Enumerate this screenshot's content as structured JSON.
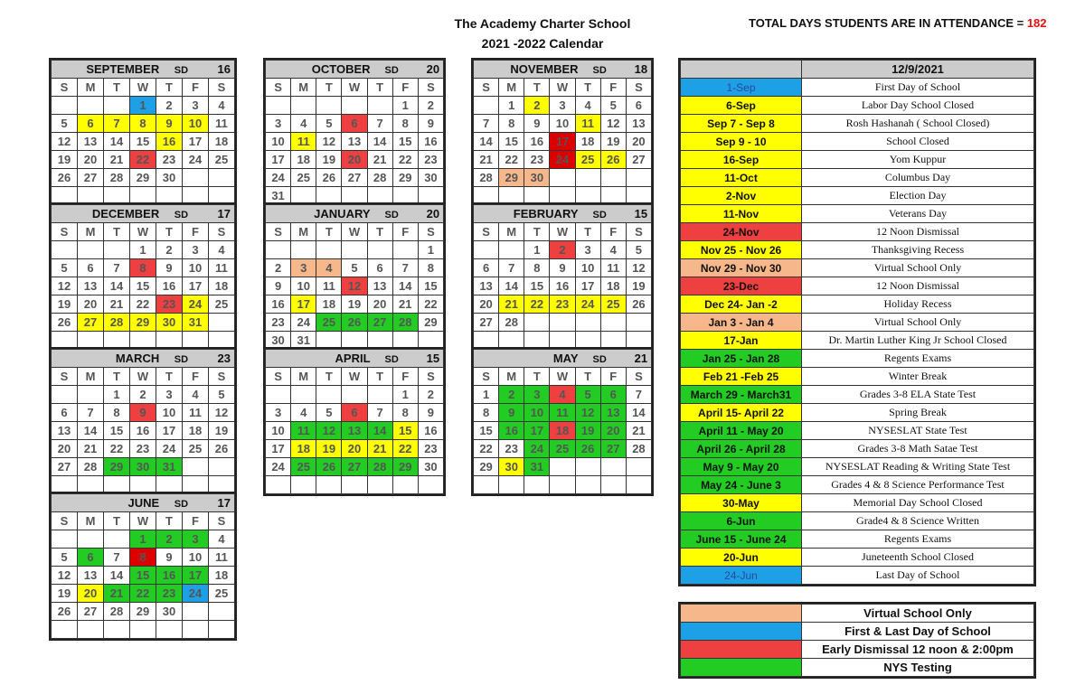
{
  "header": {
    "school": "The Academy Charter School",
    "year": "2021 -2022 Calendar",
    "total_label": "TOTAL DAYS STUDENTS ARE IN ATTENDANCE = ",
    "total_value": "182"
  },
  "dow": [
    "S",
    "M",
    "T",
    "W",
    "T",
    "F",
    "S"
  ],
  "sd_label": "SD",
  "colors": {
    "y": "#ffff00",
    "g": "#22cc22",
    "r": "#ee4040",
    "R": "#dd0000",
    "b": "#1ea0e6",
    "p": "#f6b88a"
  },
  "months": [
    {
      "name": "SEPTEMBER",
      "sd": "16",
      "start": 3,
      "days": 30,
      "marks": {
        "1": "b",
        "6": "y",
        "7": "y",
        "8": "y",
        "9": "y",
        "10": "y",
        "16": "y",
        "22": "r"
      }
    },
    {
      "name": "OCTOBER",
      "sd": "20",
      "start": 5,
      "days": 31,
      "marks": {
        "6": "r",
        "11": "y",
        "20": "r"
      }
    },
    {
      "name": "NOVEMBER",
      "sd": "18",
      "start": 1,
      "days": 30,
      "marks": {
        "2": "y",
        "11": "y",
        "17": "R",
        "24": "R",
        "25": "y",
        "26": "y",
        "29": "p",
        "30": "p"
      }
    },
    {
      "name": "DECEMBER",
      "sd": "17",
      "start": 3,
      "days": 31,
      "marks": {
        "8": "r",
        "23": "r",
        "24": "y",
        "27": "y",
        "28": "y",
        "29": "y",
        "30": "y",
        "31": "y"
      }
    },
    {
      "name": "JANUARY",
      "sd": "20",
      "start": 6,
      "days": 31,
      "marks": {
        "3": "p",
        "4": "p",
        "12": "r",
        "17": "y",
        "25": "g",
        "26": "g",
        "27": "g",
        "28": "g"
      }
    },
    {
      "name": "FEBRUARY",
      "sd": "15",
      "start": 2,
      "days": 28,
      "marks": {
        "2": "r",
        "21": "y",
        "22": "y",
        "23": "y",
        "24": "y",
        "25": "y"
      }
    },
    {
      "name": "MARCH",
      "sd": "23",
      "start": 2,
      "days": 31,
      "marks": {
        "9": "r",
        "29": "g",
        "30": "g",
        "31": "g"
      }
    },
    {
      "name": "APRIL",
      "sd": "15",
      "start": 5,
      "days": 30,
      "marks": {
        "6": "r",
        "11": "g",
        "12": "g",
        "13": "g",
        "14": "g",
        "15": "y",
        "18": "y",
        "19": "y",
        "20": "y",
        "21": "y",
        "22": "y",
        "25": "g",
        "26": "g",
        "27": "g",
        "28": "g",
        "29": "g"
      }
    },
    {
      "name": "MAY",
      "sd": "21",
      "start": 0,
      "days": 31,
      "marks": {
        "2": "g",
        "3": "g",
        "4": "r",
        "5": "g",
        "6": "g",
        "9": "g",
        "10": "g",
        "11": "g",
        "12": "g",
        "13": "g",
        "16": "g",
        "17": "g",
        "18": "r",
        "19": "g",
        "20": "g",
        "24": "g",
        "25": "g",
        "26": "g",
        "27": "g",
        "30": "y",
        "31": "g"
      }
    },
    {
      "name": "JUNE",
      "sd": "17",
      "start": 3,
      "days": 30,
      "marks": {
        "1": "g",
        "2": "g",
        "3": "g",
        "6": "g",
        "8": "R",
        "15": "g",
        "16": "g",
        "17": "g",
        "20": "y",
        "21": "g",
        "22": "g",
        "23": "g",
        "24": "b"
      }
    }
  ],
  "events": {
    "date": "12/9/2021",
    "rows": [
      {
        "d": "1-Sep",
        "e": "First Day of School",
        "c": "b"
      },
      {
        "d": "6-Sep",
        "e": "Labor Day School Closed",
        "c": "y"
      },
      {
        "d": "Sep 7 - Sep 8",
        "e": "Rosh Hashanah ( School Closed)",
        "c": "y"
      },
      {
        "d": "Sep 9 - 10",
        "e": "School Closed",
        "c": "y"
      },
      {
        "d": "16-Sep",
        "e": "Yom Kuppur",
        "c": "y"
      },
      {
        "d": "11-Oct",
        "e": "Columbus Day",
        "c": "y"
      },
      {
        "d": "2-Nov",
        "e": "Election Day",
        "c": "y"
      },
      {
        "d": "11-Nov",
        "e": "Veterans Day",
        "c": "y"
      },
      {
        "d": "24-Nov",
        "e": "12 Noon Dismissal",
        "c": "r"
      },
      {
        "d": "Nov 25 - Nov 26",
        "e": "Thanksgiving Recess",
        "c": "y"
      },
      {
        "d": "Nov 29 - Nov 30",
        "e": "Virtual School Only",
        "c": "p"
      },
      {
        "d": "23-Dec",
        "e": "12 Noon Dismissal",
        "c": "r"
      },
      {
        "d": "Dec 24- Jan -2",
        "e": "Holiday Recess",
        "c": "y"
      },
      {
        "d": "Jan 3 - Jan 4",
        "e": "Virtual School Only",
        "c": "p"
      },
      {
        "d": "17-Jan",
        "e": "Dr. Martin Luther King Jr  School Closed",
        "c": "y"
      },
      {
        "d": "Jan 25 - Jan 28",
        "e": "Regents Exams",
        "c": "g"
      },
      {
        "d": "Feb 21 -Feb 25",
        "e": "Winter Break",
        "c": "y"
      },
      {
        "d": "March 29 - March31",
        "e": "Grades  3-8 ELA State Test",
        "c": "g"
      },
      {
        "d": "April 15- April 22",
        "e": "Spring Break",
        "c": "y"
      },
      {
        "d": "April 11 - May 20",
        "e": "NYSESLAT State Test",
        "c": "g"
      },
      {
        "d": "April 26 - April 28",
        "e": "Grades 3-8 Math Satae Test",
        "c": "g"
      },
      {
        "d": "May 9 - May 20",
        "e": "NYSESLAT  Reading  & Writing State Test",
        "c": "g"
      },
      {
        "d": "May 24 - June 3",
        "e": "Grades 4 & 8 Science Performance Test",
        "c": "g"
      },
      {
        "d": "30-May",
        "e": "Memorial Day School  Closed",
        "c": "y"
      },
      {
        "d": "6-Jun",
        "e": "Grade4 & 8 Science Written",
        "c": "g"
      },
      {
        "d": "June 15 - June 24",
        "e": "Regents Exams",
        "c": "g"
      },
      {
        "d": "20-Jun",
        "e": "Juneteenth School Closed",
        "c": "y"
      },
      {
        "d": "24-Jun",
        "e": "Last Day of School",
        "c": "b"
      }
    ]
  },
  "legend": [
    {
      "label": "Virtual School Only",
      "c": "p"
    },
    {
      "label": "First & Last Day of School",
      "c": "b"
    },
    {
      "label": "Early Dismissal 12 noon & 2:00pm",
      "c": "r"
    },
    {
      "label": "NYS Testing",
      "c": "g"
    }
  ]
}
